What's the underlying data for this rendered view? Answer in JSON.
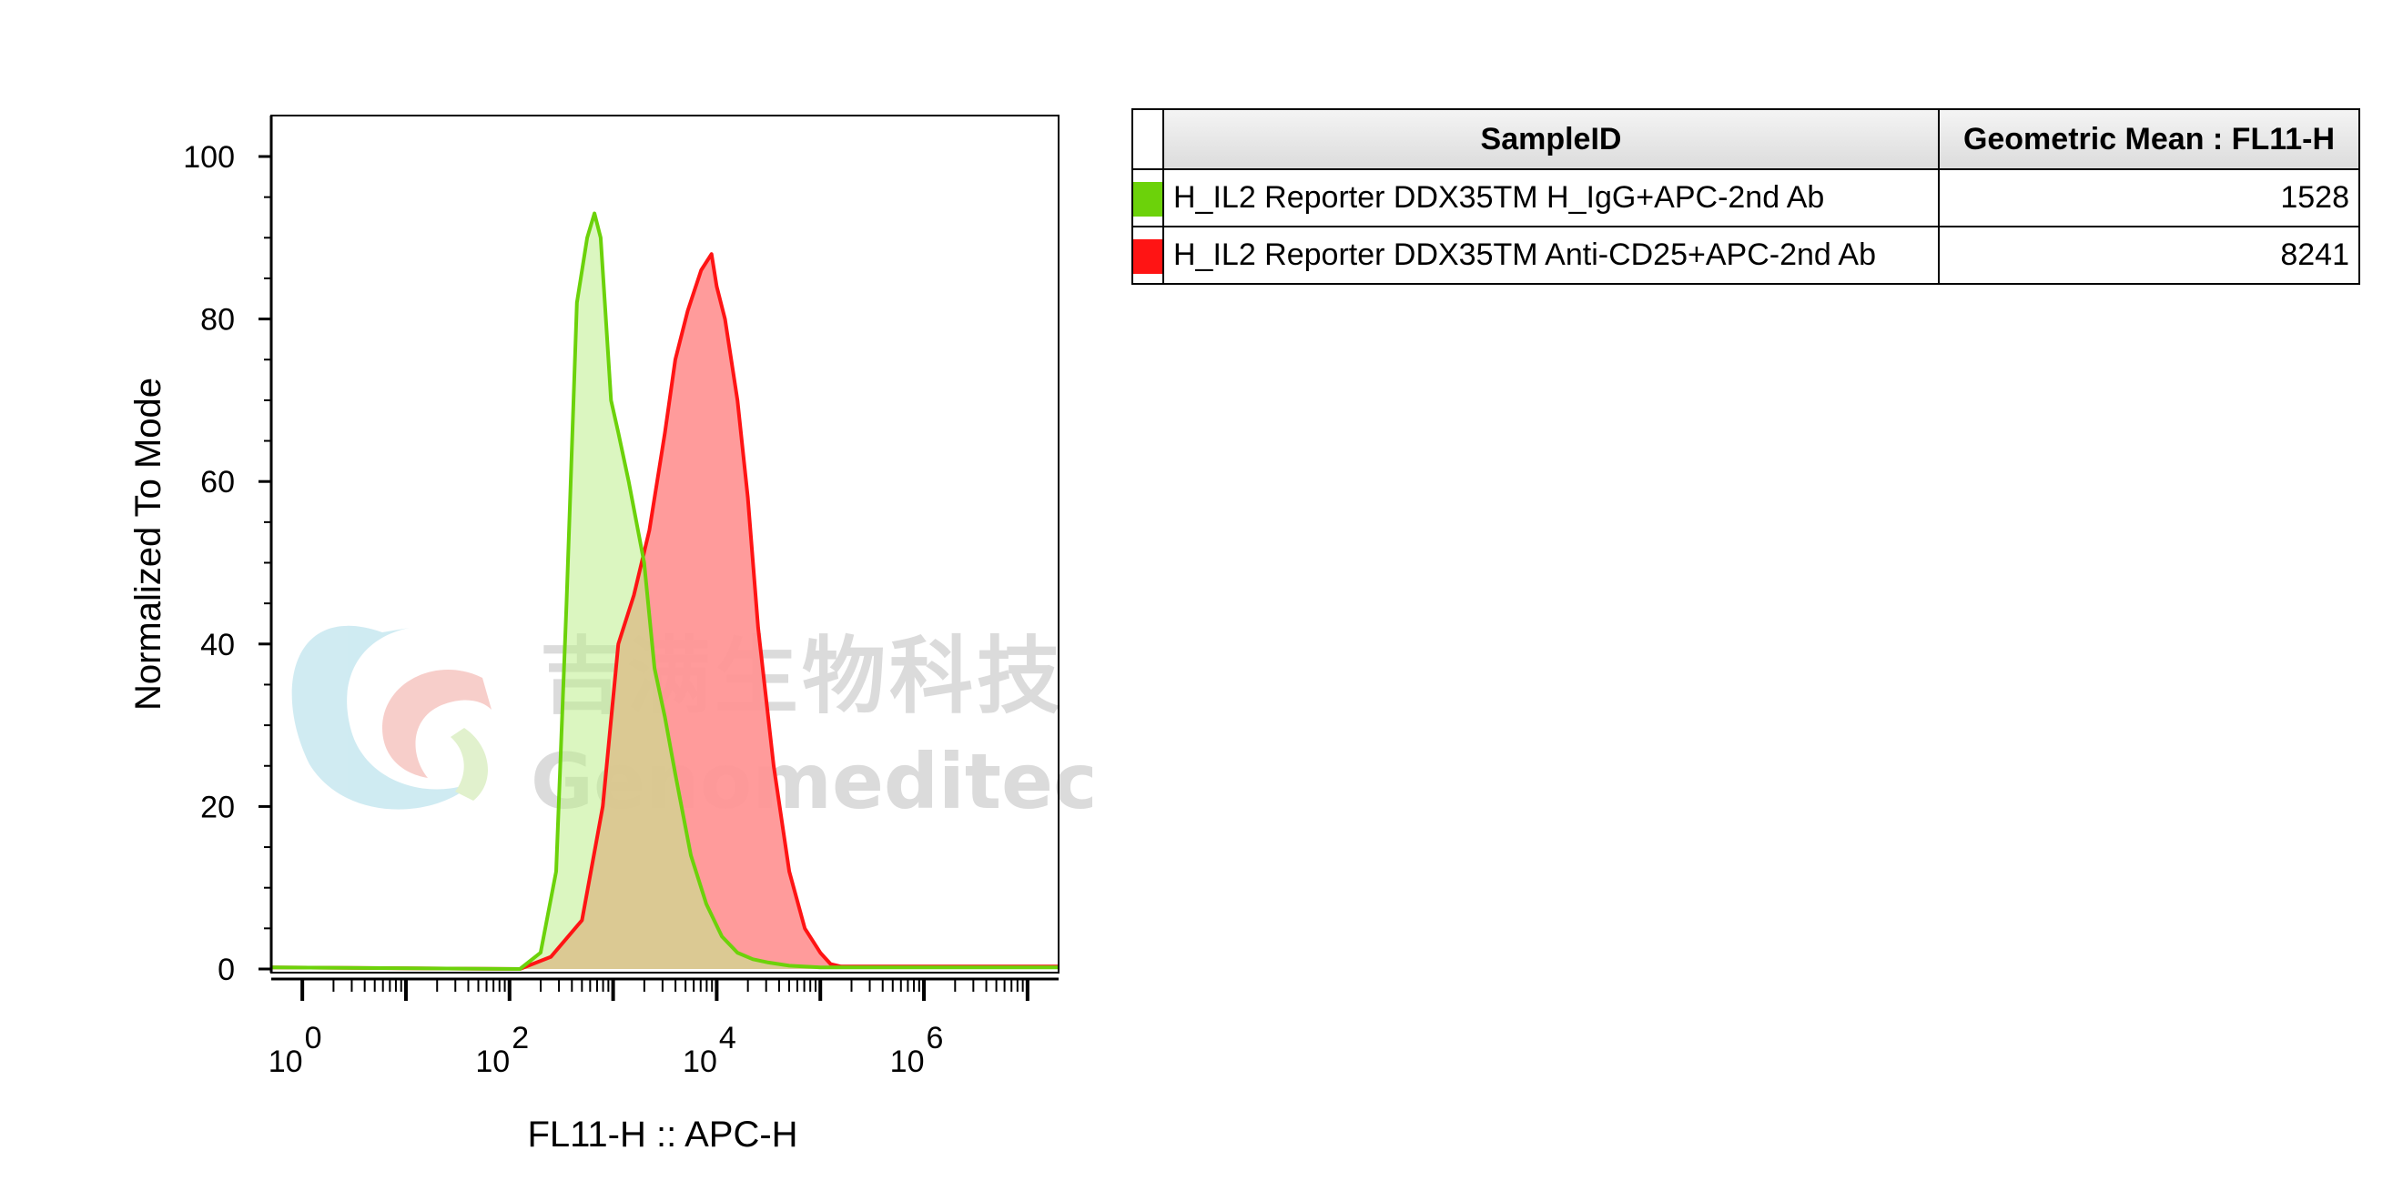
{
  "chart_data": {
    "type": "area",
    "title": "",
    "xlabel": "FL11-H :: APC-H",
    "ylabel": "Normalized To Mode",
    "xscale": "log",
    "xlim_log10": [
      -0.3,
      7.3
    ],
    "ylim": [
      0,
      100
    ],
    "y_ticks": [
      0,
      20,
      40,
      60,
      80,
      100
    ],
    "x_ticks": [
      {
        "base": "10",
        "exp": "0"
      },
      {
        "base": "10",
        "exp": "2"
      },
      {
        "base": "10",
        "exp": "4"
      },
      {
        "base": "10",
        "exp": "6"
      }
    ],
    "grid": false,
    "legend_position": "right-table",
    "series": [
      {
        "name": "H_IL2 Reporter DDX35TM H_IgG+APC-2nd Ab",
        "color": "#6cd20a",
        "fill": "#bdef8c",
        "geometric_mean": 1528,
        "x_log10": [
          2.1,
          2.3,
          2.45,
          2.55,
          2.65,
          2.75,
          2.82,
          2.88,
          2.92,
          2.98,
          3.05,
          3.15,
          3.3,
          3.4,
          3.5,
          3.6,
          3.75,
          3.9,
          4.05,
          4.2,
          4.35,
          4.5,
          4.7,
          5.0,
          7.3
        ],
        "y": [
          0,
          2,
          12,
          45,
          82,
          90,
          93,
          90,
          82,
          70,
          66,
          60,
          50,
          37,
          31,
          24,
          14,
          8,
          4,
          2,
          1.2,
          0.8,
          0.4,
          0.2,
          0.2
        ]
      },
      {
        "name": "H_IL2 Reporter DDX35TM Anti-CD25+APC-2nd Ab",
        "color": "#ff1414",
        "fill": "#ff9696",
        "geometric_mean": 8241,
        "x_log10": [
          2.1,
          2.4,
          2.7,
          2.9,
          3.05,
          3.2,
          3.35,
          3.5,
          3.6,
          3.72,
          3.85,
          3.95,
          4.0,
          4.08,
          4.2,
          4.3,
          4.4,
          4.55,
          4.7,
          4.85,
          5.0,
          5.1,
          5.2,
          7.3
        ],
        "y": [
          0,
          1.5,
          6,
          20,
          40,
          46,
          54,
          66,
          75,
          81,
          86,
          88,
          84,
          80,
          70,
          58,
          42,
          25,
          12,
          5,
          2,
          0.6,
          0.3,
          0.3
        ]
      }
    ]
  },
  "table": {
    "headers": {
      "sample": "SampleID",
      "mean": "Geometric Mean : FL11-H"
    },
    "rows": [
      {
        "sample": "H_IL2 Reporter DDX35TM H_IgG+APC-2nd Ab",
        "mean": "1528",
        "color": "#6cd20a"
      },
      {
        "sample": "H_IL2 Reporter DDX35TM Anti-CD25+APC-2nd Ab",
        "mean": "8241",
        "color": "#ff1414"
      }
    ]
  },
  "watermark": {
    "cn": "吉满生物科技",
    "en": "Genomeditech"
  }
}
